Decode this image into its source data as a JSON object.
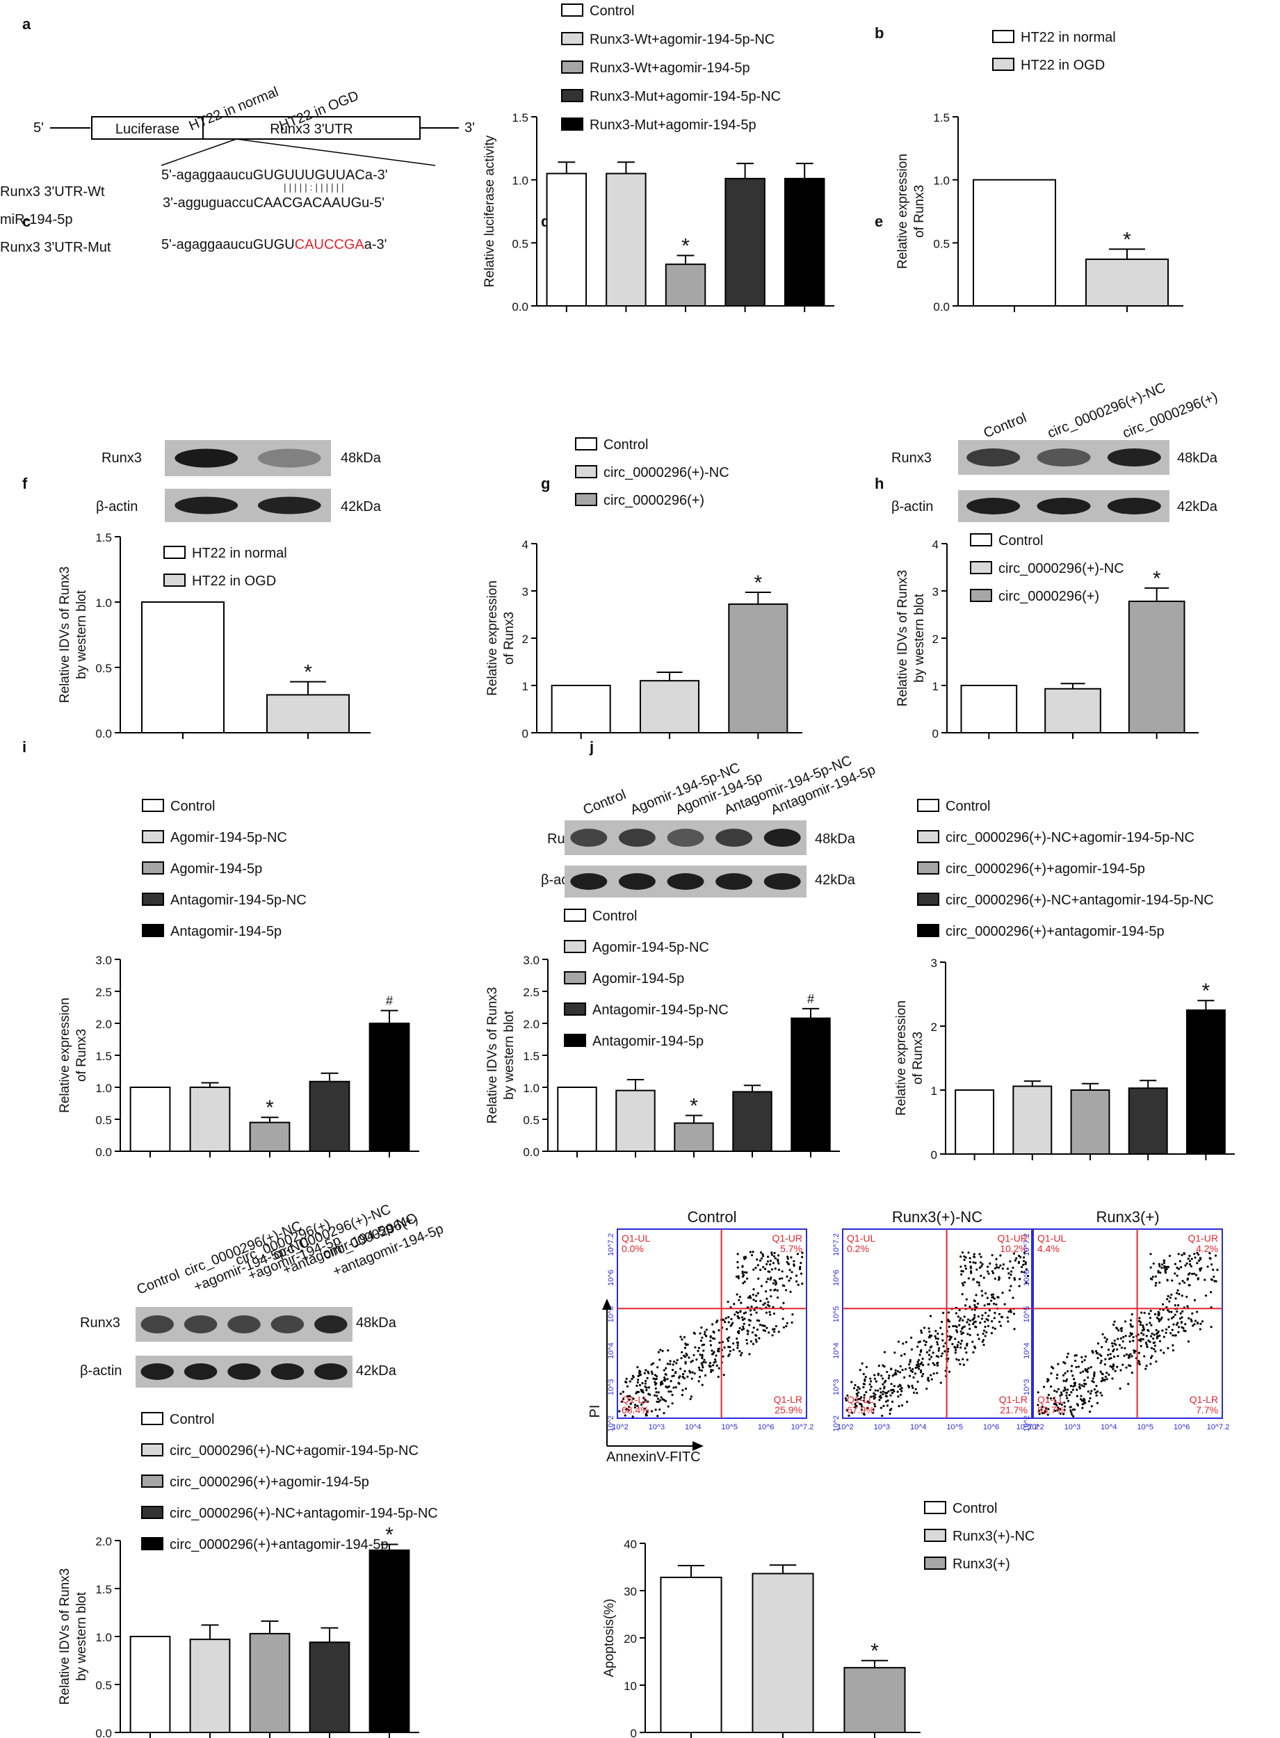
{
  "colors": {
    "control": "#ffffff",
    "light_gray": "#d9d9d9",
    "mid_gray": "#a6a6a6",
    "dark_gray": "#333333",
    "black": "#000000",
    "red": "#e3262d",
    "blue": "#2b2bd9"
  },
  "chart_data": [
    {
      "panel": "a",
      "type": "bar",
      "schematic": {
        "five_prime": "5'",
        "three_prime": "3'",
        "box1": "Luciferase",
        "box2": "Runx3 3'UTR",
        "rows": [
          {
            "label": "Runx3 3'UTR-Wt",
            "seq": "5'-agaggaaucuGUGUUUGUUACa-3'"
          },
          {
            "label": "miR-194-5p",
            "seq": "3'-agguguaccuCAACGACAAUGu-5'"
          },
          {
            "label": "Runx3 3'UTR-Mut",
            "seq_prefix": "5'-agaggaaucuGUGU",
            "seq_mut": "CAUCCGA",
            "seq_suffix": "a-3'"
          }
        ],
        "pairing": "| | | | | :  |  |  | | | |"
      },
      "legend": [
        "Control",
        "Runx3-Wt+agomir-194-5p-NC",
        "Runx3-Wt+agomir-194-5p",
        "Runx3-Mut+agomir-194-5p-NC",
        "Runx3-Mut+agomir-194-5p"
      ],
      "values": [
        1.05,
        1.05,
        0.33,
        1.01,
        1.01
      ],
      "errors": [
        0.09,
        0.09,
        0.07,
        0.12,
        0.12
      ],
      "marks": [
        "",
        "",
        "*",
        "",
        ""
      ],
      "ylabel": [
        "Relative luciferase activity"
      ],
      "ylim": [
        0,
        1.5
      ],
      "ticks": [
        "0.0",
        "0.5",
        "1.0",
        "1.5"
      ]
    },
    {
      "panel": "b",
      "type": "bar",
      "legend": [
        "HT22 in normal",
        "HT22 in OGD"
      ],
      "values": [
        1.0,
        0.37
      ],
      "errors": [
        0,
        0.08
      ],
      "marks": [
        "",
        "*"
      ],
      "ylabel": [
        "Relative expression",
        "of Runx3"
      ],
      "ylim": [
        0,
        1.5
      ],
      "ticks": [
        "0.0",
        "0.5",
        "1.0",
        "1.5"
      ]
    },
    {
      "panel": "c",
      "type": "bar",
      "blot": {
        "lanes": [
          "HT22 in normal",
          "HT22 in OGD"
        ],
        "rows": [
          "Runx3",
          "β-actin"
        ],
        "sizes": [
          "48kDa",
          "42kDa"
        ]
      },
      "legend": [
        "HT22 in normal",
        "HT22 in OGD"
      ],
      "values": [
        1.0,
        0.29
      ],
      "errors": [
        0,
        0.1
      ],
      "marks": [
        "",
        "*"
      ],
      "ylabel": [
        "Relative IDVs of Runx3",
        "by western blot"
      ],
      "ylim": [
        0,
        1.5
      ],
      "ticks": [
        "0.0",
        "0.5",
        "1.0",
        "1.5"
      ]
    },
    {
      "panel": "d",
      "type": "bar",
      "legend": [
        "Control",
        "circ_0000296(+)-NC",
        "circ_0000296(+)"
      ],
      "values": [
        1.0,
        1.1,
        2.72
      ],
      "errors": [
        0,
        0.18,
        0.25
      ],
      "marks": [
        "",
        "",
        "*"
      ],
      "ylabel": [
        "Relative expression",
        "of Runx3"
      ],
      "ylim": [
        0,
        4
      ],
      "ticks": [
        "0",
        "1",
        "2",
        "3",
        "4"
      ]
    },
    {
      "panel": "e",
      "type": "bar",
      "blot": {
        "lanes": [
          "Control",
          "circ_0000296(+)-NC",
          "circ_0000296(+)"
        ],
        "rows": [
          "Runx3",
          "β-actin"
        ],
        "sizes": [
          "48kDa",
          "42kDa"
        ]
      },
      "legend": [
        "Control",
        "circ_0000296(+)-NC",
        "circ_0000296(+)"
      ],
      "values": [
        1.0,
        0.93,
        2.78
      ],
      "errors": [
        0,
        0.11,
        0.28
      ],
      "marks": [
        "",
        "",
        "*"
      ],
      "ylabel": [
        "Relative IDVs of Runx3",
        "by western blot"
      ],
      "ylim": [
        0,
        4
      ],
      "ticks": [
        "0",
        "1",
        "2",
        "3",
        "4"
      ]
    },
    {
      "panel": "f",
      "type": "bar",
      "legend": [
        "Control",
        "Agomir-194-5p-NC",
        "Agomir-194-5p",
        "Antagomir-194-5p-NC",
        "Antagomir-194-5p"
      ],
      "values": [
        1.0,
        1.0,
        0.45,
        1.09,
        2.0
      ],
      "errors": [
        0,
        0.07,
        0.08,
        0.13,
        0.2
      ],
      "marks": [
        "",
        "",
        "*",
        "",
        "#"
      ],
      "ylabel": [
        "Relative expression",
        "of Runx3"
      ],
      "ylim": [
        0,
        3.0
      ],
      "ticks": [
        "0.0",
        "0.5",
        "1.0",
        "1.5",
        "2.0",
        "2.5",
        "3.0"
      ]
    },
    {
      "panel": "g",
      "type": "bar",
      "blot": {
        "lanes": [
          "Control",
          "Agomir-194-5p-NC",
          "Agomir-194-5p",
          "Antagomir-194-5p-NC",
          "Antagomir-194-5p"
        ],
        "rows": [
          "Runx3",
          "β-actin"
        ],
        "sizes": [
          "48kDa",
          "42kDa"
        ]
      },
      "legend": [
        "Control",
        "Agomir-194-5p-NC",
        "Agomir-194-5p",
        "Antagomir-194-5p-NC",
        "Antagomir-194-5p"
      ],
      "values": [
        1.0,
        0.95,
        0.44,
        0.93,
        2.08
      ],
      "errors": [
        0,
        0.17,
        0.12,
        0.1,
        0.15
      ],
      "marks": [
        "",
        "",
        "*",
        "",
        "#"
      ],
      "ylabel": [
        "Relative IDVs of Runx3",
        "by western blot"
      ],
      "ylim": [
        0,
        3.0
      ],
      "ticks": [
        "0.0",
        "0.5",
        "1.0",
        "1.5",
        "2.0",
        "2.5",
        "3.0"
      ]
    },
    {
      "panel": "h",
      "type": "bar",
      "legend": [
        "Control",
        "circ_0000296(+)-NC+agomir-194-5p-NC",
        "circ_0000296(+)+agomir-194-5p",
        "circ_0000296(+)-NC+antagomir-194-5p-NC",
        "circ_0000296(+)+antagomir-194-5p"
      ],
      "values": [
        1.0,
        1.06,
        1.0,
        1.03,
        2.25
      ],
      "errors": [
        0,
        0.08,
        0.1,
        0.12,
        0.15
      ],
      "marks": [
        "",
        "",
        "",
        "",
        "*"
      ],
      "ylabel": [
        "Relative expression",
        "of Runx3"
      ],
      "ylim": [
        0,
        3
      ],
      "ticks": [
        "0",
        "1",
        "2",
        "3"
      ]
    },
    {
      "panel": "i",
      "type": "bar",
      "blot": {
        "lanes": [
          "Control",
          "circ_0000296(+)-NC",
          "+agomir-194-5p-NC",
          "circ_0000296(+)",
          "+agomir-194-5p",
          "circ_0000296(+)-NC",
          "+antagomir-194-5p-NC",
          "circ_0000296(+)",
          "+antagomir-194-5p"
        ],
        "rows": [
          "Runx3",
          "β-actin"
        ],
        "sizes": [
          "48kDa",
          "42kDa"
        ]
      },
      "legend": [
        "Control",
        "circ_0000296(+)-NC+agomir-194-5p-NC",
        "circ_0000296(+)+agomir-194-5p",
        "circ_0000296(+)-NC+antagomir-194-5p-NC",
        "circ_0000296(+)+antagomir-194-5p"
      ],
      "values": [
        1.0,
        0.97,
        1.03,
        0.94,
        1.9
      ],
      "errors": [
        0,
        0.15,
        0.13,
        0.15,
        0.06
      ],
      "marks": [
        "",
        "",
        "",
        "",
        "*"
      ],
      "ylabel": [
        "Relative IDVs of Runx3",
        "by western blot"
      ],
      "ylim": [
        0,
        2.0
      ],
      "ticks": [
        "0.0",
        "0.5",
        "1.0",
        "1.5",
        "2.0"
      ]
    },
    {
      "panel": "j",
      "type": "bar",
      "flow": {
        "titles": [
          "Control",
          "Runx3(+)-NC",
          "Runx3(+)"
        ],
        "ul": [
          "Q1-UL\n0.0%",
          "Q1-UL\n0.2%",
          "Q1-UL\n4.4%"
        ],
        "ur": [
          "Q1-UR\n5.7%",
          "Q1-UR\n10.2%",
          "Q1-UR\n4.2%"
        ],
        "lr": [
          "Q1-LR\n25.9%",
          "Q1-LR\n21.7%",
          "Q1-LR\n7.7%"
        ],
        "ll": [
          "Q1-LL\n68.4%",
          "Q1-LL\n67.9%",
          "Q1-LL\n83.7%"
        ],
        "xaxis": "AnnexinV-FITC",
        "yaxis": "PI",
        "axis_ticks": [
          "10^2",
          "10^3",
          "10^4",
          "10^5",
          "10^6",
          "10^7.2"
        ]
      },
      "legend": [
        "Control",
        "Runx3(+)-NC",
        "Runx3(+)"
      ],
      "values": [
        32.8,
        33.6,
        13.7
      ],
      "errors": [
        2.5,
        1.8,
        1.5
      ],
      "marks": [
        "",
        "",
        "*"
      ],
      "ylabel": [
        "Apoptosis(%)"
      ],
      "ylim": [
        0,
        40
      ],
      "ticks": [
        "0",
        "10",
        "20",
        "30",
        "40"
      ]
    }
  ],
  "panel_letters": [
    "a",
    "b",
    "c",
    "d",
    "e",
    "f",
    "g",
    "h",
    "i",
    "j"
  ]
}
